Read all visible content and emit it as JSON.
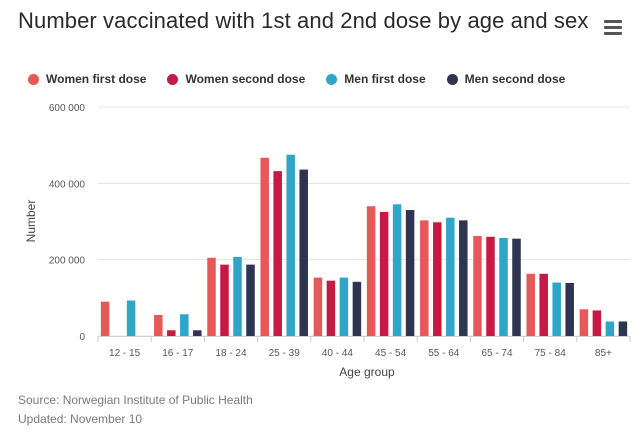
{
  "title": "Number vaccinated with 1st and 2nd dose by age and sex",
  "menu_icon": "hamburger-menu-icon",
  "source": "Source: Norwegian Institute of Public Health",
  "updated": "Updated: November 10",
  "chart_data": {
    "type": "bar",
    "title": "Number vaccinated with 1st and 2nd dose by age and sex",
    "xlabel": "Age group",
    "ylabel": "Number",
    "ylim": [
      0,
      600000
    ],
    "yticks": [
      0,
      200000,
      400000,
      600000
    ],
    "ytick_labels": [
      "0",
      "200 000",
      "400 000",
      "600 000"
    ],
    "grid": "horizontal",
    "legend_position": "top-left",
    "categories": [
      "12 - 15",
      "16 - 17",
      "18 - 24",
      "25 - 39",
      "40 - 44",
      "45 - 54",
      "55 - 64",
      "65 - 74",
      "75 - 84",
      "85+"
    ],
    "series": [
      {
        "name": "Women first dose",
        "color": "#e8585a",
        "values": [
          90000,
          55000,
          205000,
          467000,
          153000,
          340000,
          303000,
          262000,
          163000,
          70000
        ]
      },
      {
        "name": "Women second dose",
        "color": "#c41a45",
        "values": [
          0,
          15000,
          187000,
          432000,
          145000,
          325000,
          298000,
          260000,
          163000,
          67000
        ]
      },
      {
        "name": "Men first dose",
        "color": "#2fa6c8",
        "values": [
          93000,
          57000,
          207000,
          475000,
          153000,
          345000,
          310000,
          257000,
          140000,
          38000
        ]
      },
      {
        "name": "Men second dose",
        "color": "#2f3450",
        "values": [
          0,
          15000,
          187000,
          436000,
          142000,
          330000,
          303000,
          255000,
          139000,
          38000
        ]
      }
    ]
  }
}
